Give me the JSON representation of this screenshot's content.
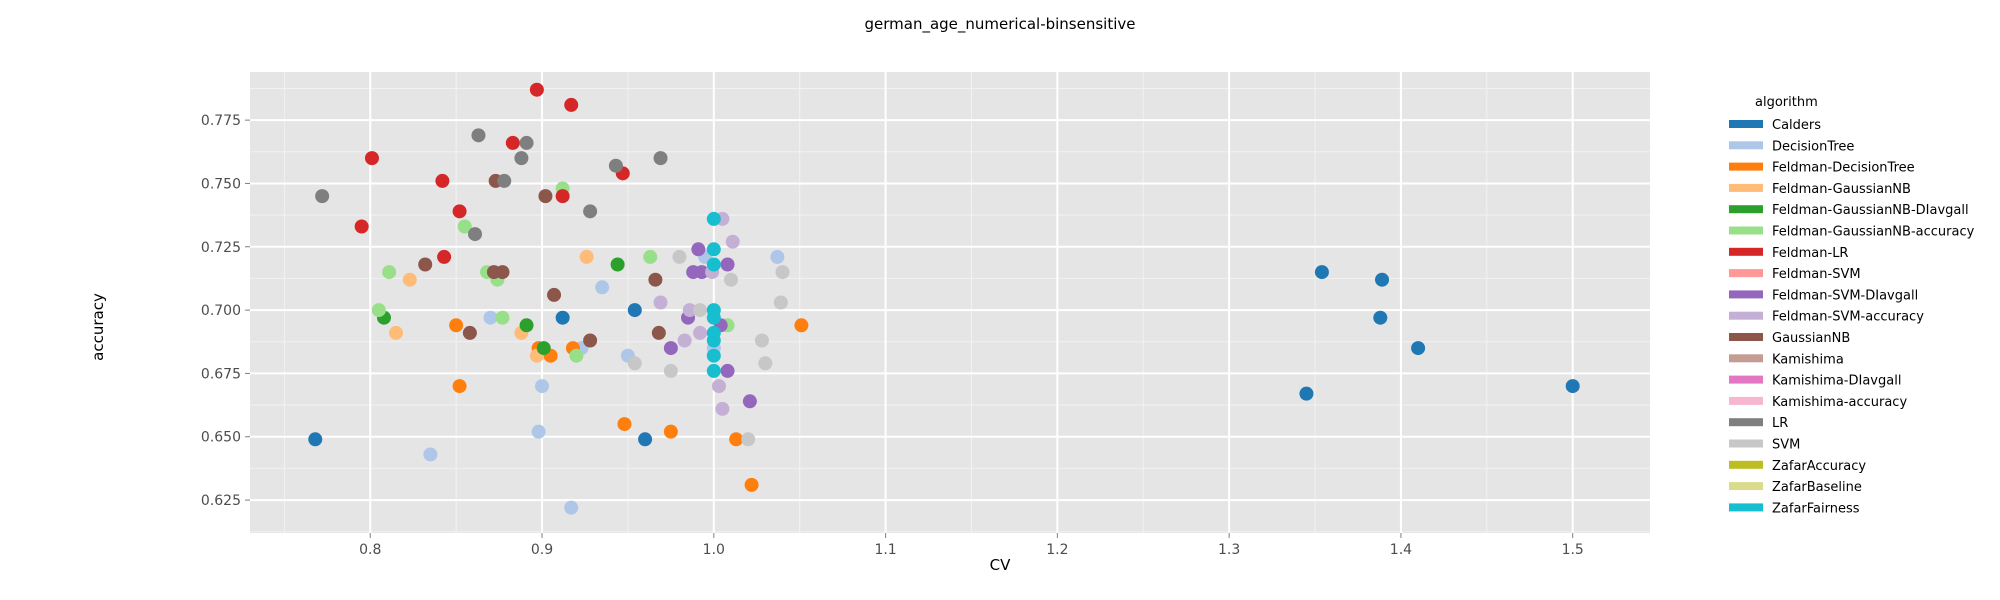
{
  "chart_data": {
    "type": "scatter",
    "title": "german_age_numerical-binsensitive",
    "xlabel": "CV",
    "ylabel": "accuracy",
    "xlim": [
      0.73,
      1.545
    ],
    "ylim": [
      0.612,
      0.794
    ],
    "xticks": [
      0.8,
      0.9,
      1.0,
      1.1,
      1.2,
      1.3,
      1.4,
      1.5
    ],
    "xtick_labels": [
      "0.8",
      "0.9",
      "1.0",
      "1.1",
      "1.2",
      "1.3",
      "1.4",
      "1.5"
    ],
    "yticks": [
      0.625,
      0.65,
      0.675,
      0.7,
      0.725,
      0.75,
      0.775
    ],
    "ytick_labels": [
      "0.625",
      "0.650",
      "0.675",
      "0.700",
      "0.725",
      "0.750",
      "0.775"
    ],
    "grid": true,
    "legend_title": "algorithm",
    "legend_position": "right",
    "series": [
      {
        "name": "Calders",
        "color": "#1f77b4",
        "points": [
          [
            0.768,
            0.649
          ],
          [
            0.912,
            0.697
          ],
          [
            0.954,
            0.7
          ],
          [
            0.96,
            0.649
          ],
          [
            1.345,
            0.667
          ],
          [
            1.354,
            0.715
          ],
          [
            1.388,
            0.697
          ],
          [
            1.389,
            0.712
          ],
          [
            1.41,
            0.685
          ],
          [
            1.5,
            0.67
          ]
        ]
      },
      {
        "name": "DecisionTree",
        "color": "#aec7e8",
        "points": [
          [
            0.835,
            0.643
          ],
          [
            0.87,
            0.697
          ],
          [
            0.898,
            0.652
          ],
          [
            0.9,
            0.67
          ],
          [
            0.917,
            0.622
          ],
          [
            0.923,
            0.685
          ],
          [
            0.935,
            0.709
          ],
          [
            0.95,
            0.682
          ],
          [
            1.0,
            0.685
          ],
          [
            1.037,
            0.721
          ],
          [
            0.995,
            0.721
          ]
        ]
      },
      {
        "name": "Feldman-DecisionTree",
        "color": "#ff7f0e",
        "points": [
          [
            0.85,
            0.694
          ],
          [
            0.852,
            0.67
          ],
          [
            0.898,
            0.685
          ],
          [
            0.905,
            0.682
          ],
          [
            0.918,
            0.685
          ],
          [
            0.948,
            0.655
          ],
          [
            0.975,
            0.652
          ],
          [
            1.013,
            0.649
          ],
          [
            1.022,
            0.631
          ],
          [
            1.051,
            0.694
          ]
        ]
      },
      {
        "name": "Feldman-GaussianNB",
        "color": "#ffbb78",
        "points": [
          [
            0.815,
            0.691
          ],
          [
            0.823,
            0.712
          ],
          [
            0.888,
            0.691
          ],
          [
            0.897,
            0.682
          ],
          [
            0.926,
            0.721
          ]
        ]
      },
      {
        "name": "Feldman-GaussianNB-DIavgall",
        "color": "#2ca02c",
        "points": [
          [
            0.808,
            0.697
          ],
          [
            0.891,
            0.694
          ],
          [
            0.901,
            0.685
          ],
          [
            0.944,
            0.718
          ]
        ]
      },
      {
        "name": "Feldman-GaussianNB-accuracy",
        "color": "#98df8a",
        "points": [
          [
            0.805,
            0.7
          ],
          [
            0.811,
            0.715
          ],
          [
            0.855,
            0.733
          ],
          [
            0.868,
            0.715
          ],
          [
            0.874,
            0.712
          ],
          [
            0.877,
            0.697
          ],
          [
            0.912,
            0.748
          ],
          [
            0.92,
            0.682
          ],
          [
            0.963,
            0.721
          ],
          [
            1.008,
            0.694
          ]
        ]
      },
      {
        "name": "Feldman-LR",
        "color": "#d62728",
        "points": [
          [
            0.795,
            0.733
          ],
          [
            0.801,
            0.76
          ],
          [
            0.842,
            0.751
          ],
          [
            0.843,
            0.721
          ],
          [
            0.852,
            0.739
          ],
          [
            0.883,
            0.766
          ],
          [
            0.897,
            0.787
          ],
          [
            0.912,
            0.745
          ],
          [
            0.917,
            0.781
          ],
          [
            0.947,
            0.754
          ]
        ]
      },
      {
        "name": "Feldman-SVM",
        "color": "#ff9896",
        "points": []
      },
      {
        "name": "Feldman-SVM-DIavgall",
        "color": "#9467bd",
        "points": [
          [
            0.975,
            0.685
          ],
          [
            0.985,
            0.697
          ],
          [
            0.988,
            0.715
          ],
          [
            0.991,
            0.724
          ],
          [
            0.993,
            0.715
          ],
          [
            1.004,
            0.694
          ],
          [
            1.008,
            0.676
          ],
          [
            1.008,
            0.718
          ],
          [
            1.021,
            0.664
          ]
        ]
      },
      {
        "name": "Feldman-SVM-accuracy",
        "color": "#c5b0d5",
        "points": [
          [
            0.969,
            0.703
          ],
          [
            0.983,
            0.688
          ],
          [
            0.986,
            0.7
          ],
          [
            0.992,
            0.691
          ],
          [
            0.999,
            0.715
          ],
          [
            1.003,
            0.67
          ],
          [
            1.005,
            0.661
          ],
          [
            1.005,
            0.736
          ],
          [
            1.011,
            0.727
          ]
        ]
      },
      {
        "name": "GaussianNB",
        "color": "#8c564b",
        "points": [
          [
            0.832,
            0.718
          ],
          [
            0.858,
            0.691
          ],
          [
            0.872,
            0.715
          ],
          [
            0.873,
            0.751
          ],
          [
            0.877,
            0.715
          ],
          [
            0.902,
            0.745
          ],
          [
            0.907,
            0.706
          ],
          [
            0.928,
            0.688
          ],
          [
            0.966,
            0.712
          ],
          [
            0.968,
            0.691
          ]
        ]
      },
      {
        "name": "Kamishima",
        "color": "#c49c94",
        "points": []
      },
      {
        "name": "Kamishima-DIavgall",
        "color": "#e377c2",
        "points": []
      },
      {
        "name": "Kamishima-accuracy",
        "color": "#f7b6d2",
        "points": []
      },
      {
        "name": "LR",
        "color": "#7f7f7f",
        "points": [
          [
            0.772,
            0.745
          ],
          [
            0.861,
            0.73
          ],
          [
            0.863,
            0.769
          ],
          [
            0.878,
            0.751
          ],
          [
            0.888,
            0.76
          ],
          [
            0.891,
            0.766
          ],
          [
            0.928,
            0.739
          ],
          [
            0.943,
            0.757
          ],
          [
            0.969,
            0.76
          ]
        ]
      },
      {
        "name": "SVM",
        "color": "#c7c7c7",
        "points": [
          [
            0.954,
            0.679
          ],
          [
            0.975,
            0.676
          ],
          [
            0.98,
            0.721
          ],
          [
            0.992,
            0.7
          ],
          [
            1.01,
            0.712
          ],
          [
            1.02,
            0.649
          ],
          [
            1.028,
            0.688
          ],
          [
            1.03,
            0.679
          ],
          [
            1.039,
            0.703
          ],
          [
            1.04,
            0.715
          ]
        ]
      },
      {
        "name": "ZafarAccuracy",
        "color": "#bcbd22",
        "points": []
      },
      {
        "name": "ZafarBaseline",
        "color": "#dbdb8d",
        "points": []
      },
      {
        "name": "ZafarFairness",
        "color": "#17becf",
        "points": [
          [
            1.0,
            0.736
          ],
          [
            1.0,
            0.724
          ],
          [
            1.0,
            0.718
          ],
          [
            1.0,
            0.7
          ],
          [
            1.0,
            0.697
          ],
          [
            1.0,
            0.691
          ],
          [
            1.0,
            0.688
          ],
          [
            1.0,
            0.682
          ],
          [
            1.0,
            0.676
          ]
        ]
      }
    ]
  }
}
